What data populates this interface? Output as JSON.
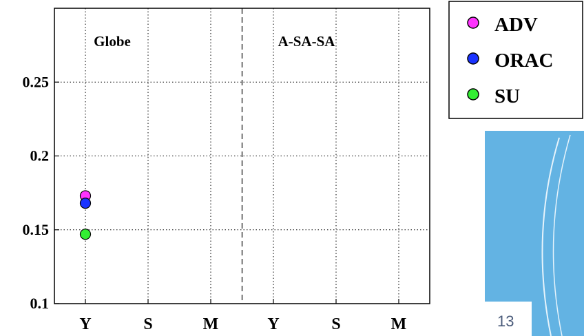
{
  "chart_data": {
    "type": "scatter",
    "title": "",
    "xlabel": "",
    "ylabel": "",
    "categories": [
      "Y",
      "S",
      "M",
      "Y",
      "S",
      "M"
    ],
    "panels": [
      "Globe",
      "A-SA-SA"
    ],
    "ylim": [
      0.1,
      0.3
    ],
    "yticks": [
      "0.1",
      "0.15",
      "0.2",
      "0.25"
    ],
    "grid": true,
    "legend_position": "outside-top-right",
    "series": [
      {
        "name": "ADV",
        "color": "#ff33ff",
        "values": [
          0.173,
          null,
          null,
          null,
          null,
          null
        ]
      },
      {
        "name": "ORAC",
        "color": "#1a33ff",
        "values": [
          0.168,
          null,
          null,
          null,
          null,
          null
        ]
      },
      {
        "name": "SU",
        "color": "#33ee33",
        "values": [
          0.147,
          null,
          null,
          null,
          null,
          null
        ]
      }
    ]
  },
  "slide": {
    "number": "13",
    "accent_color": "#63b3e3"
  }
}
